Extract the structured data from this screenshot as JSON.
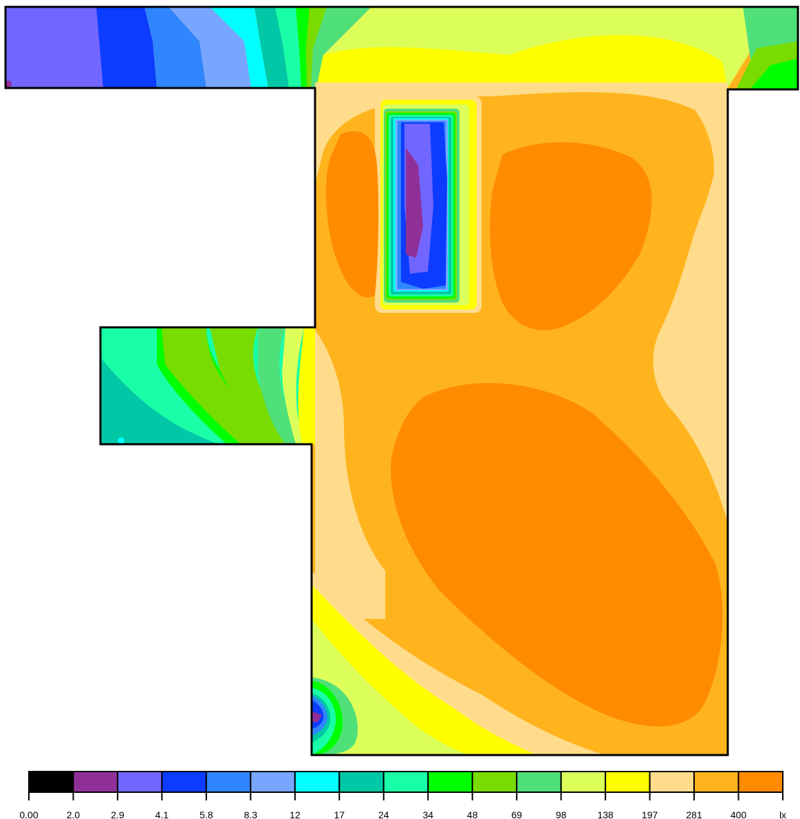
{
  "legend": {
    "labels": [
      "0.00",
      "2.0",
      "2.9",
      "4.1",
      "5.8",
      "8.3",
      "12",
      "17",
      "24",
      "34",
      "48",
      "69",
      "98",
      "138",
      "197",
      "281",
      "400"
    ],
    "unit": "lx",
    "colors": [
      "#000000",
      "#8f3099",
      "#7166ff",
      "#0c3cff",
      "#2f86ff",
      "#78a6ff",
      "#00ffff",
      "#00c8a6",
      "#19ffa8",
      "#00ff00",
      "#78dc00",
      "#50e07a",
      "#ddff5a",
      "#ffff00",
      "#ffdc8c",
      "#ffb41e",
      "#ff8c00"
    ]
  }
}
